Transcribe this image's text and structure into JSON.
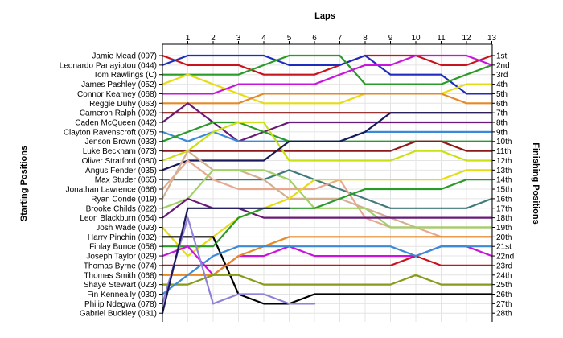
{
  "chart_data": {
    "type": "line",
    "title": "Laps",
    "ylabel_left": "Starting Positions",
    "ylabel_right": "Finishing Positions",
    "laps": [
      1,
      2,
      3,
      4,
      5,
      6,
      7,
      8,
      9,
      10,
      11,
      12,
      13
    ],
    "starting_labels": [
      "Jamie Mead (097)",
      "Leonardo Panayiotou (044)",
      "Tom Rawlings (C)",
      "James Pashley (052)",
      "Connor Kearney (068)",
      "Reggie Duhy (063)",
      "Cameron Ralph (092)",
      "Caden McQueen (042)",
      "Clayton Ravenscroft (075)",
      "Jenson Brown (033)",
      "Luke Beckham (073)",
      "Oliver Stratford (080)",
      "Angus Fender (035)",
      "Max Studer (065)",
      "Jonathan Lawrence (066)",
      "Ryan Conde (019)",
      "Brooke Childs (022)",
      "Leon Blackburn (054)",
      "Josh Wade (093)",
      "Harry Pinchin (032)",
      "Finlay Bunce (058)",
      "Joseph Taylor (029)",
      "Thomas Byrne (074)",
      "Thomas Smith (068)",
      "Shaye Stewart (023)",
      "Fin Kenneally (030)",
      "Philip Ndegwa (078)",
      "Gabriel Buckley (031)"
    ],
    "finishing_labels": [
      "1st",
      "2nd",
      "3rd",
      "4th",
      "5th",
      "6th",
      "7th",
      "8th",
      "9th",
      "10th",
      "11th",
      "12th",
      "13th",
      "14th",
      "15th",
      "16th",
      "17th",
      "18th",
      "19th",
      "20th",
      "21st",
      "22nd",
      "23rd",
      "24th",
      "25th",
      "26th",
      "27th",
      "28th"
    ],
    "series": [
      {
        "start": 1,
        "color": "#c8141e",
        "positions": [
          2,
          2,
          2,
          3,
          3,
          3,
          2,
          1,
          1,
          1,
          2,
          2,
          1
        ]
      },
      {
        "start": 2,
        "color": "#1f2dbe",
        "positions": [
          1,
          1,
          1,
          1,
          2,
          2,
          2,
          1,
          3,
          3,
          3,
          5,
          5
        ]
      },
      {
        "start": 3,
        "color": "#2a9a2a",
        "positions": [
          3,
          3,
          3,
          2,
          1,
          1,
          1,
          4,
          4,
          4,
          4,
          3,
          2
        ]
      },
      {
        "start": 4,
        "color": "#e6dc14",
        "positions": [
          3,
          4,
          5,
          6,
          6,
          6,
          6,
          5,
          5,
          5,
          5,
          4,
          4
        ]
      },
      {
        "start": 5,
        "color": "#c814dc",
        "positions": [
          5,
          5,
          4,
          4,
          4,
          4,
          3,
          2,
          2,
          1,
          1,
          1,
          2
        ]
      },
      {
        "start": 6,
        "color": "#e68a28",
        "positions": [
          6,
          6,
          6,
          5,
          5,
          5,
          5,
          5,
          5,
          5,
          5,
          6,
          6
        ]
      },
      {
        "start": 7,
        "color": "#8b1a1a",
        "positions": [
          7,
          7,
          7,
          7,
          7,
          7,
          7,
          7,
          7,
          7,
          7,
          7,
          7
        ]
      },
      {
        "start": 8,
        "color": "#6a1a78",
        "positions": [
          6,
          8,
          10,
          9,
          8,
          8,
          8,
          8,
          8,
          8,
          8,
          8,
          8
        ]
      },
      {
        "start": 9,
        "color": "#3a8ad8",
        "positions": [
          10,
          9,
          10,
          10,
          10,
          10,
          10,
          9,
          9,
          9,
          9,
          9,
          9
        ]
      },
      {
        "start": 10,
        "color": "#2a9a2a",
        "positions": [
          9,
          8,
          8,
          9,
          10,
          10,
          10,
          10,
          10,
          10,
          10,
          10,
          10
        ]
      },
      {
        "start": 11,
        "color": "#8b1a1a",
        "positions": [
          11,
          11,
          11,
          11,
          11,
          11,
          11,
          11,
          11,
          10,
          10,
          11,
          11
        ]
      },
      {
        "start": 12,
        "color": "#c8e014",
        "positions": [
          11,
          9,
          8,
          8,
          12,
          12,
          12,
          12,
          12,
          11,
          11,
          12,
          12
        ]
      },
      {
        "start": 13,
        "color": "#1a1a5a",
        "positions": [
          12,
          12,
          12,
          12,
          10,
          10,
          10,
          9,
          7,
          7,
          7,
          7,
          7
        ]
      },
      {
        "start": 14,
        "color": "#407a7a",
        "positions": [
          14,
          14,
          14,
          14,
          13,
          14,
          15,
          16,
          17,
          17,
          17,
          17,
          16
        ]
      },
      {
        "start": 15,
        "color": "#e8a890",
        "positions": [
          12,
          14,
          15,
          15,
          15,
          15,
          14,
          18,
          19,
          19,
          20,
          20,
          20
        ]
      },
      {
        "start": 16,
        "color": "#d4b090",
        "positions": [
          11,
          13,
          13,
          14,
          16,
          16,
          16,
          17,
          18,
          19,
          19,
          19,
          19
        ]
      },
      {
        "start": 17,
        "color": "#a0d068",
        "positions": [
          16,
          13,
          13,
          13,
          14,
          17,
          17,
          17,
          19,
          19,
          19,
          19,
          19
        ]
      },
      {
        "start": 18,
        "color": "#6a1a78",
        "positions": [
          16,
          17,
          17,
          18,
          18,
          18,
          18,
          18,
          18,
          18,
          18,
          18,
          18
        ]
      },
      {
        "start": 19,
        "color": "#e6dc14",
        "positions": [
          22,
          20,
          18,
          17,
          16,
          14,
          14,
          14,
          14,
          14,
          14,
          13,
          13
        ]
      },
      {
        "start": 20,
        "color": "#000000",
        "positions": [
          20,
          20,
          26,
          27,
          27,
          26,
          26,
          26,
          26,
          26,
          26,
          26,
          26
        ]
      },
      {
        "start": 21,
        "color": "#2a9a2a",
        "positions": [
          21,
          21,
          18,
          17,
          17,
          17,
          16,
          15,
          15,
          15,
          15,
          14,
          14
        ]
      },
      {
        "start": 22,
        "color": "#c814dc",
        "positions": [
          21,
          24,
          22,
          22,
          21,
          22,
          22,
          22,
          22,
          22,
          21,
          21,
          22
        ]
      },
      {
        "start": 23,
        "color": "#c8141e",
        "positions": [
          23,
          23,
          23,
          23,
          23,
          23,
          23,
          23,
          23,
          22,
          23,
          23,
          23
        ]
      },
      {
        "start": 24,
        "color": "#e68a28",
        "positions": [
          24,
          24,
          22,
          21,
          20,
          20,
          20,
          20,
          20,
          20,
          20,
          20,
          20
        ]
      },
      {
        "start": 25,
        "color": "#8a9a1a",
        "positions": [
          25,
          24,
          24,
          25,
          25,
          25,
          25,
          25,
          25,
          24,
          25,
          25,
          25
        ]
      },
      {
        "start": 26,
        "color": "#3a8ad8",
        "positions": [
          24,
          22,
          21,
          21,
          21,
          21,
          21,
          21,
          21,
          22,
          21,
          21,
          21
        ]
      },
      {
        "start": 27,
        "color": "#9080d8",
        "positions": [
          18,
          27,
          26,
          26,
          27,
          27,
          null,
          null,
          null,
          null,
          null,
          null,
          null
        ]
      },
      {
        "start": 28,
        "color": "#1a1a5a",
        "positions": [
          17,
          17,
          17,
          17,
          17,
          null,
          null,
          null,
          null,
          null,
          null,
          null,
          null
        ]
      }
    ]
  }
}
